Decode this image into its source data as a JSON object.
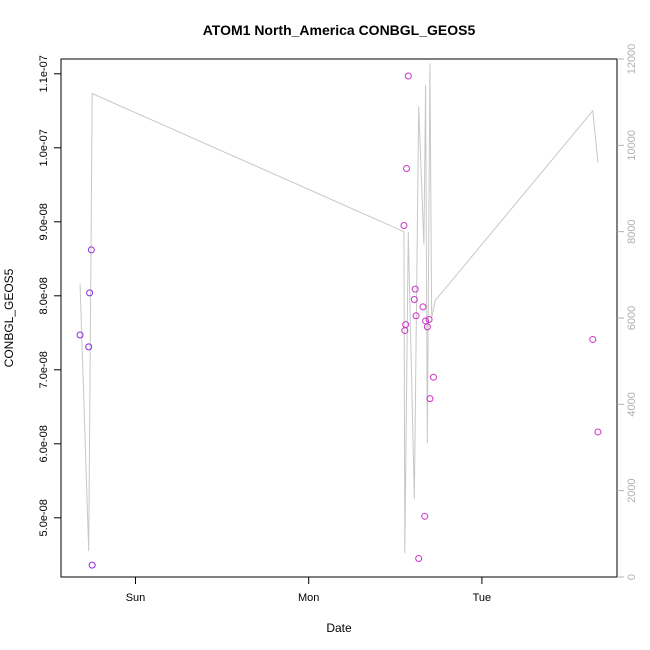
{
  "chart_data": {
    "type": "scatter",
    "title": "ATOM1 North_America CONBGL_GEOS5",
    "xlabel": "Date",
    "ylabel": "CONBGL_GEOS5",
    "y2label": "",
    "xlim_days": [
      -0.43,
      2.78
    ],
    "ylim": [
      4.2e-08,
      1.12e-07
    ],
    "y2lim": [
      0,
      12000
    ],
    "x_ticks": [
      {
        "day": 0,
        "label": "Sun"
      },
      {
        "day": 1,
        "label": "Mon"
      },
      {
        "day": 2,
        "label": "Tue"
      }
    ],
    "y_ticks": [
      {
        "value": 5e-08,
        "label": "5.0e-08"
      },
      {
        "value": 6e-08,
        "label": "6.0e-08"
      },
      {
        "value": 7e-08,
        "label": "7.0e-08"
      },
      {
        "value": 8e-08,
        "label": "8.0e-08"
      },
      {
        "value": 9e-08,
        "label": "9.0e-08"
      },
      {
        "value": 1e-07,
        "label": "1.0e-07"
      },
      {
        "value": 1.1e-07,
        "label": "1.1e-07"
      }
    ],
    "y2_ticks": [
      {
        "value": 0,
        "label": "0"
      },
      {
        "value": 2000,
        "label": "2000"
      },
      {
        "value": 4000,
        "label": "4000"
      },
      {
        "value": 6000,
        "label": "6000"
      },
      {
        "value": 8000,
        "label": "8000"
      },
      {
        "value": 10000,
        "label": "10000"
      },
      {
        "value": 12000,
        "label": "12000"
      }
    ],
    "series": [
      {
        "type": "scatter",
        "color": "#8a2be2",
        "points": [
          {
            "x": -0.32,
            "y": 7.47e-08
          },
          {
            "x": -0.27,
            "y": 7.31e-08
          },
          {
            "x": -0.265,
            "y": 8.04e-08
          },
          {
            "x": -0.255,
            "y": 8.62e-08
          },
          {
            "x": -0.25,
            "y": 4.36e-08
          }
        ]
      },
      {
        "type": "scatter",
        "color": "#cc33cc",
        "points": [
          {
            "x": 1.55,
            "y": 8.95e-08
          },
          {
            "x": 1.555,
            "y": 7.53e-08
          },
          {
            "x": 1.56,
            "y": 7.61e-08
          },
          {
            "x": 1.565,
            "y": 9.72e-08
          },
          {
            "x": 1.575,
            "y": 1.097e-07
          },
          {
            "x": 1.61,
            "y": 7.95e-08
          },
          {
            "x": 1.615,
            "y": 8.09e-08
          },
          {
            "x": 1.62,
            "y": 7.73e-08
          },
          {
            "x": 1.635,
            "y": 4.45e-08
          },
          {
            "x": 1.66,
            "y": 7.85e-08
          },
          {
            "x": 1.67,
            "y": 5.02e-08
          },
          {
            "x": 1.675,
            "y": 7.66e-08
          },
          {
            "x": 1.685,
            "y": 7.58e-08
          },
          {
            "x": 1.695,
            "y": 7.68e-08
          },
          {
            "x": 1.7,
            "y": 6.61e-08
          },
          {
            "x": 1.72,
            "y": 6.9e-08
          },
          {
            "x": 2.64,
            "y": 7.41e-08
          },
          {
            "x": 2.67,
            "y": 6.16e-08
          }
        ]
      },
      {
        "type": "line",
        "axis": "right",
        "color": "#c8c8c8",
        "points": [
          {
            "x": -0.32,
            "y": 6800
          },
          {
            "x": -0.27,
            "y": 600
          },
          {
            "x": -0.25,
            "y": 11200
          },
          {
            "x": 1.55,
            "y": 8000
          },
          {
            "x": 1.555,
            "y": 550
          },
          {
            "x": 1.575,
            "y": 8000
          },
          {
            "x": 1.61,
            "y": 1800
          },
          {
            "x": 1.635,
            "y": 10900
          },
          {
            "x": 1.665,
            "y": 7700
          },
          {
            "x": 1.675,
            "y": 11400
          },
          {
            "x": 1.685,
            "y": 3100
          },
          {
            "x": 1.7,
            "y": 11900
          },
          {
            "x": 1.71,
            "y": 6000
          },
          {
            "x": 1.73,
            "y": 6400
          },
          {
            "x": 2.64,
            "y": 10800
          },
          {
            "x": 2.67,
            "y": 9600
          }
        ]
      }
    ]
  }
}
